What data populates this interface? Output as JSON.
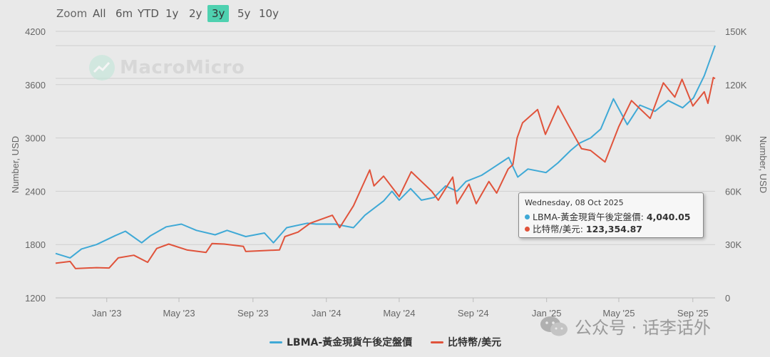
{
  "zoom": {
    "label": "Zoom",
    "buttons": [
      "All",
      "6m",
      "YTD",
      "1y",
      "2y",
      "3y",
      "5y",
      "10y"
    ],
    "active": "3y",
    "active_color": "#4fd1b0"
  },
  "watermark": {
    "text": "MacroMicro"
  },
  "footer_watermark": {
    "text": "公众号 · 话李话外"
  },
  "tooltip": {
    "date": "Wednesday, 08 Oct 2025",
    "rows": [
      {
        "name": "LBMA-黃金現貨午後定盤價",
        "value": "4,040.05",
        "color": "#3fa9d6"
      },
      {
        "name": "比特幣/美元",
        "value": "123,354.87",
        "color": "#e0533b"
      }
    ]
  },
  "chart_data": {
    "type": "line",
    "x_ticks": [
      "Jan '23",
      "May '23",
      "Sep '23",
      "Jan '24",
      "May '24",
      "Sep '24",
      "Jan '25",
      "May '25",
      "Sep '25"
    ],
    "x_range": [
      "2022-10-08",
      "2025-10-08"
    ],
    "y_left": {
      "label": "Number, USD",
      "ticks": [
        "1200",
        "1800",
        "2400",
        "3000",
        "3600",
        "4200"
      ],
      "range": [
        1200,
        4200
      ]
    },
    "y_right": {
      "label": "Number, USD",
      "ticks": [
        "0",
        "30K",
        "60K",
        "90K",
        "120K",
        "150K"
      ],
      "range": [
        0,
        150000
      ]
    },
    "legend_position": "bottom-center",
    "series": [
      {
        "name": "LBMA-黃金現貨午後定盤價",
        "axis": "left",
        "color": "#3fa9d6",
        "points": [
          [
            "2022-10-08",
            1700
          ],
          [
            "2022-11-01",
            1650
          ],
          [
            "2022-11-20",
            1750
          ],
          [
            "2022-12-15",
            1800
          ],
          [
            "2023-01-15",
            1900
          ],
          [
            "2023-02-01",
            1950
          ],
          [
            "2023-02-28",
            1820
          ],
          [
            "2023-03-15",
            1900
          ],
          [
            "2023-04-10",
            2000
          ],
          [
            "2023-05-05",
            2030
          ],
          [
            "2023-05-30",
            1960
          ],
          [
            "2023-06-30",
            1910
          ],
          [
            "2023-07-20",
            1960
          ],
          [
            "2023-08-20",
            1890
          ],
          [
            "2023-09-20",
            1930
          ],
          [
            "2023-10-05",
            1820
          ],
          [
            "2023-10-27",
            1990
          ],
          [
            "2023-11-30",
            2040
          ],
          [
            "2023-12-15",
            2030
          ],
          [
            "2024-01-15",
            2030
          ],
          [
            "2024-02-15",
            1990
          ],
          [
            "2024-03-05",
            2130
          ],
          [
            "2024-04-05",
            2290
          ],
          [
            "2024-04-19",
            2400
          ],
          [
            "2024-05-01",
            2300
          ],
          [
            "2024-05-20",
            2430
          ],
          [
            "2024-06-07",
            2300
          ],
          [
            "2024-06-28",
            2330
          ],
          [
            "2024-07-17",
            2460
          ],
          [
            "2024-08-05",
            2400
          ],
          [
            "2024-08-20",
            2510
          ],
          [
            "2024-09-15",
            2580
          ],
          [
            "2024-10-01",
            2650
          ],
          [
            "2024-10-30",
            2780
          ],
          [
            "2024-11-14",
            2560
          ],
          [
            "2024-12-01",
            2650
          ],
          [
            "2024-12-31",
            2610
          ],
          [
            "2025-01-20",
            2720
          ],
          [
            "2025-02-10",
            2860
          ],
          [
            "2025-02-24",
            2940
          ],
          [
            "2025-03-15",
            3000
          ],
          [
            "2025-04-01",
            3100
          ],
          [
            "2025-04-22",
            3440
          ],
          [
            "2025-05-15",
            3150
          ],
          [
            "2025-06-05",
            3370
          ],
          [
            "2025-06-30",
            3300
          ],
          [
            "2025-07-22",
            3420
          ],
          [
            "2025-08-15",
            3340
          ],
          [
            "2025-09-02",
            3450
          ],
          [
            "2025-09-20",
            3700
          ],
          [
            "2025-10-08",
            4040
          ]
        ]
      },
      {
        "name": "比特幣/美元",
        "axis": "right",
        "color": "#e0533b",
        "points": [
          [
            "2022-10-08",
            19500
          ],
          [
            "2022-11-01",
            20500
          ],
          [
            "2022-11-10",
            16500
          ],
          [
            "2022-12-15",
            17000
          ],
          [
            "2023-01-05",
            16800
          ],
          [
            "2023-01-20",
            22500
          ],
          [
            "2023-02-15",
            24000
          ],
          [
            "2023-03-10",
            20000
          ],
          [
            "2023-03-25",
            27800
          ],
          [
            "2023-04-14",
            30300
          ],
          [
            "2023-05-15",
            26900
          ],
          [
            "2023-06-15",
            25600
          ],
          [
            "2023-06-25",
            30600
          ],
          [
            "2023-07-15",
            30300
          ],
          [
            "2023-08-16",
            29000
          ],
          [
            "2023-08-20",
            26100
          ],
          [
            "2023-09-15",
            26500
          ],
          [
            "2023-10-15",
            27000
          ],
          [
            "2023-10-24",
            34500
          ],
          [
            "2023-11-15",
            37000
          ],
          [
            "2023-12-05",
            42000
          ],
          [
            "2024-01-11",
            46500
          ],
          [
            "2024-01-23",
            39500
          ],
          [
            "2024-02-15",
            51800
          ],
          [
            "2024-03-13",
            72000
          ],
          [
            "2024-03-20",
            63000
          ],
          [
            "2024-04-05",
            68500
          ],
          [
            "2024-05-01",
            57000
          ],
          [
            "2024-05-21",
            71000
          ],
          [
            "2024-06-24",
            60000
          ],
          [
            "2024-07-05",
            55000
          ],
          [
            "2024-07-29",
            68000
          ],
          [
            "2024-08-05",
            53000
          ],
          [
            "2024-08-25",
            64000
          ],
          [
            "2024-09-06",
            53000
          ],
          [
            "2024-09-27",
            65500
          ],
          [
            "2024-10-10",
            59000
          ],
          [
            "2024-10-29",
            72500
          ],
          [
            "2024-11-06",
            75000
          ],
          [
            "2024-11-13",
            90000
          ],
          [
            "2024-11-22",
            98500
          ],
          [
            "2024-12-17",
            106000
          ],
          [
            "2024-12-30",
            92000
          ],
          [
            "2025-01-20",
            108000
          ],
          [
            "2025-02-05",
            98000
          ],
          [
            "2025-02-28",
            84000
          ],
          [
            "2025-03-15",
            83000
          ],
          [
            "2025-04-08",
            76500
          ],
          [
            "2025-05-01",
            96500
          ],
          [
            "2025-05-22",
            111000
          ],
          [
            "2025-06-22",
            101000
          ],
          [
            "2025-07-14",
            121000
          ],
          [
            "2025-08-02",
            113000
          ],
          [
            "2025-08-14",
            123000
          ],
          [
            "2025-09-01",
            108000
          ],
          [
            "2025-09-20",
            116000
          ],
          [
            "2025-09-26",
            109500
          ],
          [
            "2025-10-05",
            124000
          ],
          [
            "2025-10-08",
            123354.87
          ]
        ]
      }
    ]
  }
}
